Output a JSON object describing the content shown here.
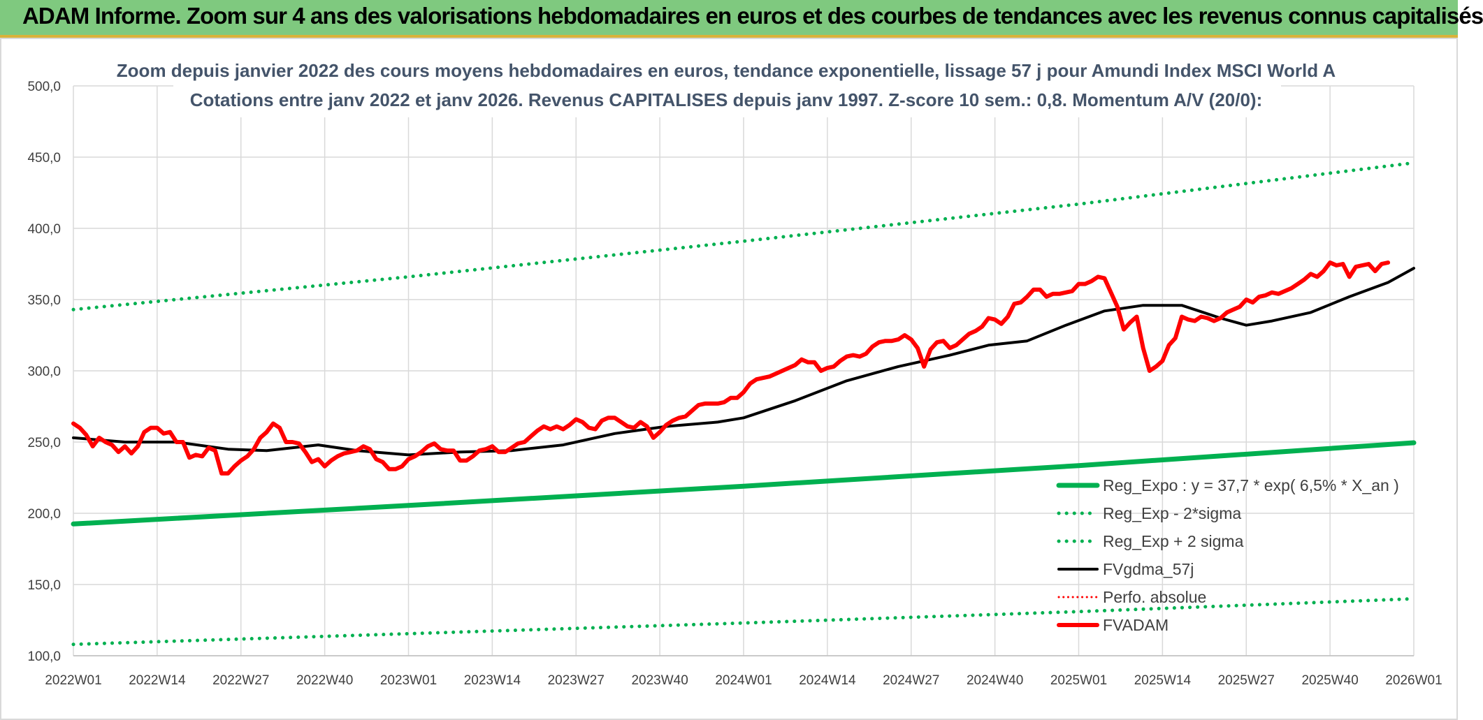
{
  "header": {
    "title": "ADAM Informe. Zoom sur 4 ans des valorisations hebdomadaires en euros et des courbes de tendances avec les revenus connus capitalisés"
  },
  "chart_data": {
    "type": "line",
    "title_line1": "Zoom depuis janvier 2022 des cours moyens hebdomadaires en euros, tendance exponentielle, lissage 57 j pour Amundi Index MSCI World A",
    "title_line2": "Cotations entre janv 2022 et janv 2026. Revenus CAPITALISES depuis janv 1997. Z-score 10 sem.: 0,8. Momentum A/V (20/0):",
    "x_tick_labels": [
      "2022W01",
      "2022W14",
      "2022W27",
      "2022W40",
      "2023W01",
      "2023W14",
      "2023W27",
      "2023W40",
      "2024W01",
      "2024W14",
      "2024W27",
      "2024W40",
      "2025W01",
      "2025W14",
      "2025W27",
      "2025W40",
      "2026W01"
    ],
    "y_tick_labels": [
      "100,0",
      "150,0",
      "200,0",
      "250,0",
      "300,0",
      "350,0",
      "400,0",
      "450,0",
      "500,0"
    ],
    "ylim": [
      100,
      500
    ],
    "xlim": [
      0,
      208
    ],
    "grid": true,
    "legend_position": "bottom-right",
    "series": [
      {
        "name": "Reg_Expo : y = 37,7 * exp( 6,5% *  X_an )",
        "color": "#00b050",
        "style": "solid",
        "width": 7,
        "points": [
          [
            0,
            192.5
          ],
          [
            52,
            205.5
          ],
          [
            104,
            219
          ],
          [
            156,
            233.5
          ],
          [
            208,
            249.5
          ]
        ]
      },
      {
        "name": "Reg_Exp - 2*sigma",
        "color": "#00b050",
        "style": "dotted",
        "width": 5,
        "points": [
          [
            0,
            108
          ],
          [
            52,
            115.5
          ],
          [
            104,
            123
          ],
          [
            156,
            131
          ],
          [
            208,
            140
          ]
        ]
      },
      {
        "name": "Reg_Exp + 2 sigma",
        "color": "#00b050",
        "style": "dotted",
        "width": 5,
        "points": [
          [
            0,
            343
          ],
          [
            52,
            366
          ],
          [
            104,
            391
          ],
          [
            156,
            417
          ],
          [
            208,
            446
          ]
        ]
      },
      {
        "name": "FVgdma_57j",
        "color": "#000000",
        "style": "solid",
        "width": 4,
        "points": [
          [
            0,
            253
          ],
          [
            8,
            250
          ],
          [
            16,
            250
          ],
          [
            24,
            245
          ],
          [
            30,
            244
          ],
          [
            38,
            248
          ],
          [
            44,
            244
          ],
          [
            52,
            241
          ],
          [
            60,
            243
          ],
          [
            68,
            244
          ],
          [
            76,
            248
          ],
          [
            84,
            256
          ],
          [
            92,
            261
          ],
          [
            100,
            264
          ],
          [
            104,
            267
          ],
          [
            112,
            279
          ],
          [
            120,
            293
          ],
          [
            128,
            303
          ],
          [
            136,
            311
          ],
          [
            142,
            318
          ],
          [
            148,
            321
          ],
          [
            154,
            332
          ],
          [
            160,
            342
          ],
          [
            166,
            346
          ],
          [
            172,
            346
          ],
          [
            178,
            337
          ],
          [
            182,
            332
          ],
          [
            186,
            335
          ],
          [
            192,
            341
          ],
          [
            198,
            352
          ],
          [
            204,
            362
          ],
          [
            208,
            372
          ]
        ]
      },
      {
        "name": "Perfo. absolue",
        "color": "#ff0000",
        "style": "dotted",
        "width": 3,
        "points": []
      },
      {
        "name": "FVADAM",
        "color": "#ff0000",
        "style": "solid",
        "width": 6,
        "points": [
          [
            0,
            263
          ],
          [
            1,
            260
          ],
          [
            2,
            255
          ],
          [
            3,
            247
          ],
          [
            4,
            253
          ],
          [
            5,
            250
          ],
          [
            6,
            248
          ],
          [
            7,
            243
          ],
          [
            8,
            247
          ],
          [
            9,
            242
          ],
          [
            10,
            247
          ],
          [
            11,
            257
          ],
          [
            12,
            260
          ],
          [
            13,
            260
          ],
          [
            14,
            256
          ],
          [
            15,
            257
          ],
          [
            16,
            250
          ],
          [
            17,
            250
          ],
          [
            18,
            239
          ],
          [
            19,
            241
          ],
          [
            20,
            240
          ],
          [
            21,
            246
          ],
          [
            22,
            244
          ],
          [
            23,
            228
          ],
          [
            24,
            228
          ],
          [
            25,
            233
          ],
          [
            26,
            237
          ],
          [
            27,
            240
          ],
          [
            28,
            245
          ],
          [
            29,
            253
          ],
          [
            30,
            257
          ],
          [
            31,
            263
          ],
          [
            32,
            260
          ],
          [
            33,
            250
          ],
          [
            34,
            250
          ],
          [
            35,
            249
          ],
          [
            36,
            243
          ],
          [
            37,
            236
          ],
          [
            38,
            238
          ],
          [
            39,
            233
          ],
          [
            40,
            237
          ],
          [
            41,
            240
          ],
          [
            42,
            242
          ],
          [
            43,
            243
          ],
          [
            44,
            244
          ],
          [
            45,
            247
          ],
          [
            46,
            245
          ],
          [
            47,
            238
          ],
          [
            48,
            236
          ],
          [
            49,
            231
          ],
          [
            50,
            231
          ],
          [
            51,
            233
          ],
          [
            52,
            238
          ],
          [
            53,
            240
          ],
          [
            54,
            243
          ],
          [
            55,
            247
          ],
          [
            56,
            249
          ],
          [
            57,
            245
          ],
          [
            58,
            244
          ],
          [
            59,
            244
          ],
          [
            60,
            237
          ],
          [
            61,
            237
          ],
          [
            62,
            240
          ],
          [
            63,
            244
          ],
          [
            64,
            245
          ],
          [
            65,
            247
          ],
          [
            66,
            243
          ],
          [
            67,
            243
          ],
          [
            68,
            246
          ],
          [
            69,
            249
          ],
          [
            70,
            250
          ],
          [
            71,
            254
          ],
          [
            72,
            258
          ],
          [
            73,
            261
          ],
          [
            74,
            259
          ],
          [
            75,
            261
          ],
          [
            76,
            259
          ],
          [
            77,
            262
          ],
          [
            78,
            266
          ],
          [
            79,
            264
          ],
          [
            80,
            260
          ],
          [
            81,
            259
          ],
          [
            82,
            265
          ],
          [
            83,
            267
          ],
          [
            84,
            267
          ],
          [
            85,
            264
          ],
          [
            86,
            261
          ],
          [
            87,
            260
          ],
          [
            88,
            264
          ],
          [
            89,
            261
          ],
          [
            90,
            253
          ],
          [
            91,
            257
          ],
          [
            92,
            262
          ],
          [
            93,
            265
          ],
          [
            94,
            267
          ],
          [
            95,
            268
          ],
          [
            96,
            272
          ],
          [
            97,
            276
          ],
          [
            98,
            277
          ],
          [
            99,
            277
          ],
          [
            100,
            277
          ],
          [
            101,
            278
          ],
          [
            102,
            281
          ],
          [
            103,
            281
          ],
          [
            104,
            285
          ],
          [
            105,
            291
          ],
          [
            106,
            294
          ],
          [
            107,
            295
          ],
          [
            108,
            296
          ],
          [
            109,
            298
          ],
          [
            110,
            300
          ],
          [
            111,
            302
          ],
          [
            112,
            304
          ],
          [
            113,
            308
          ],
          [
            114,
            306
          ],
          [
            115,
            306
          ],
          [
            116,
            300
          ],
          [
            117,
            302
          ],
          [
            118,
            303
          ],
          [
            119,
            307
          ],
          [
            120,
            310
          ],
          [
            121,
            311
          ],
          [
            122,
            310
          ],
          [
            123,
            312
          ],
          [
            124,
            317
          ],
          [
            125,
            320
          ],
          [
            126,
            321
          ],
          [
            127,
            321
          ],
          [
            128,
            322
          ],
          [
            129,
            325
          ],
          [
            130,
            322
          ],
          [
            131,
            316
          ],
          [
            132,
            303
          ],
          [
            133,
            315
          ],
          [
            134,
            320
          ],
          [
            135,
            321
          ],
          [
            136,
            316
          ],
          [
            137,
            318
          ],
          [
            138,
            322
          ],
          [
            139,
            326
          ],
          [
            140,
            328
          ],
          [
            141,
            331
          ],
          [
            142,
            337
          ],
          [
            143,
            336
          ],
          [
            144,
            333
          ],
          [
            145,
            338
          ],
          [
            146,
            347
          ],
          [
            147,
            348
          ],
          [
            148,
            352
          ],
          [
            149,
            357
          ],
          [
            150,
            357
          ],
          [
            151,
            352
          ],
          [
            152,
            354
          ],
          [
            153,
            354
          ],
          [
            154,
            355
          ],
          [
            155,
            356
          ],
          [
            156,
            361
          ],
          [
            157,
            361
          ],
          [
            158,
            363
          ],
          [
            159,
            366
          ],
          [
            160,
            365
          ],
          [
            161,
            355
          ],
          [
            162,
            345
          ],
          [
            163,
            329
          ],
          [
            164,
            334
          ],
          [
            165,
            338
          ],
          [
            166,
            316
          ],
          [
            167,
            300
          ],
          [
            168,
            303
          ],
          [
            169,
            307
          ],
          [
            170,
            318
          ],
          [
            171,
            323
          ],
          [
            172,
            338
          ],
          [
            173,
            336
          ],
          [
            174,
            335
          ],
          [
            175,
            338
          ],
          [
            176,
            337
          ],
          [
            177,
            335
          ],
          [
            178,
            337
          ],
          [
            179,
            341
          ],
          [
            180,
            343
          ],
          [
            181,
            345
          ],
          [
            182,
            350
          ],
          [
            183,
            348
          ],
          [
            184,
            352
          ],
          [
            185,
            353
          ],
          [
            186,
            355
          ],
          [
            187,
            354
          ],
          [
            188,
            356
          ],
          [
            189,
            358
          ],
          [
            190,
            361
          ],
          [
            191,
            364
          ],
          [
            192,
            368
          ],
          [
            193,
            366
          ],
          [
            194,
            370
          ],
          [
            195,
            376
          ],
          [
            196,
            374
          ],
          [
            197,
            375
          ],
          [
            198,
            366
          ],
          [
            199,
            373
          ],
          [
            200,
            374
          ],
          [
            201,
            375
          ],
          [
            202,
            370
          ],
          [
            203,
            375
          ],
          [
            204,
            376
          ]
        ]
      }
    ]
  }
}
